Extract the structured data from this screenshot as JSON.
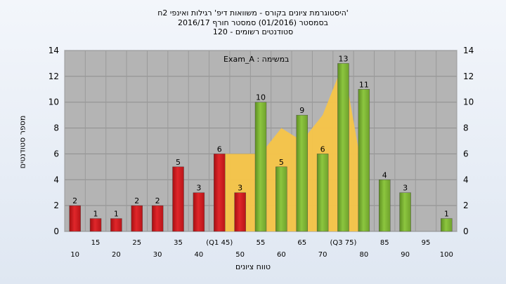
{
  "title_lines": [
    "'היסטוגרמת ציונים בקורס - משוואות דיפ' רגילות ואינפי 2ח",
    "בסמסטר  (01/2016)  סמסטר חורף  2016/17",
    "סטודנטים רשומים - 120"
  ],
  "chart_data": {
    "type": "bar",
    "title": "'היסטוגרמת ציונים בקורס - משוואות דיפ' רגילות ואינפי 2ח",
    "xlabel": "טווח ציונים",
    "ylabel": "מספר סטודנטים",
    "ylim": [
      0,
      14
    ],
    "yticks": [
      "0",
      "2",
      "4",
      "6",
      "8",
      "10",
      "12",
      "14"
    ],
    "legend_text": "במשימה : Exam_A",
    "grid": true,
    "categories": [
      "10",
      "15",
      "20",
      "25",
      "30",
      "35",
      "40",
      "(Q1 45)",
      "50",
      "55",
      "60",
      "65",
      "70",
      "(Q3 75)",
      "80",
      "85",
      "90",
      "95",
      "100"
    ],
    "values": [
      2,
      1,
      1,
      2,
      2,
      5,
      3,
      6,
      3,
      10,
      5,
      9,
      6,
      13,
      11,
      4,
      3,
      0,
      1
    ],
    "data_labels": [
      "2",
      "1",
      "1",
      "2",
      "2",
      "5",
      "3",
      "6",
      "3",
      "10",
      "5",
      "9",
      "6",
      "13",
      "11",
      "4",
      "3",
      "",
      "1"
    ],
    "bar_colors": [
      "red",
      "red",
      "red",
      "red",
      "red",
      "red",
      "red",
      "red",
      "red",
      "green",
      "green",
      "green",
      "green",
      "green",
      "green",
      "green",
      "green",
      "green",
      "green"
    ],
    "colors": {
      "red": "#e0262a",
      "green": "#8cc63f",
      "band": "#f7c548",
      "plot_bg": "#b4b4b4"
    },
    "band": {
      "x": [
        45,
        55,
        60,
        65,
        70,
        75,
        80
      ],
      "y": [
        6,
        6,
        8,
        7,
        9,
        13,
        4
      ]
    }
  }
}
